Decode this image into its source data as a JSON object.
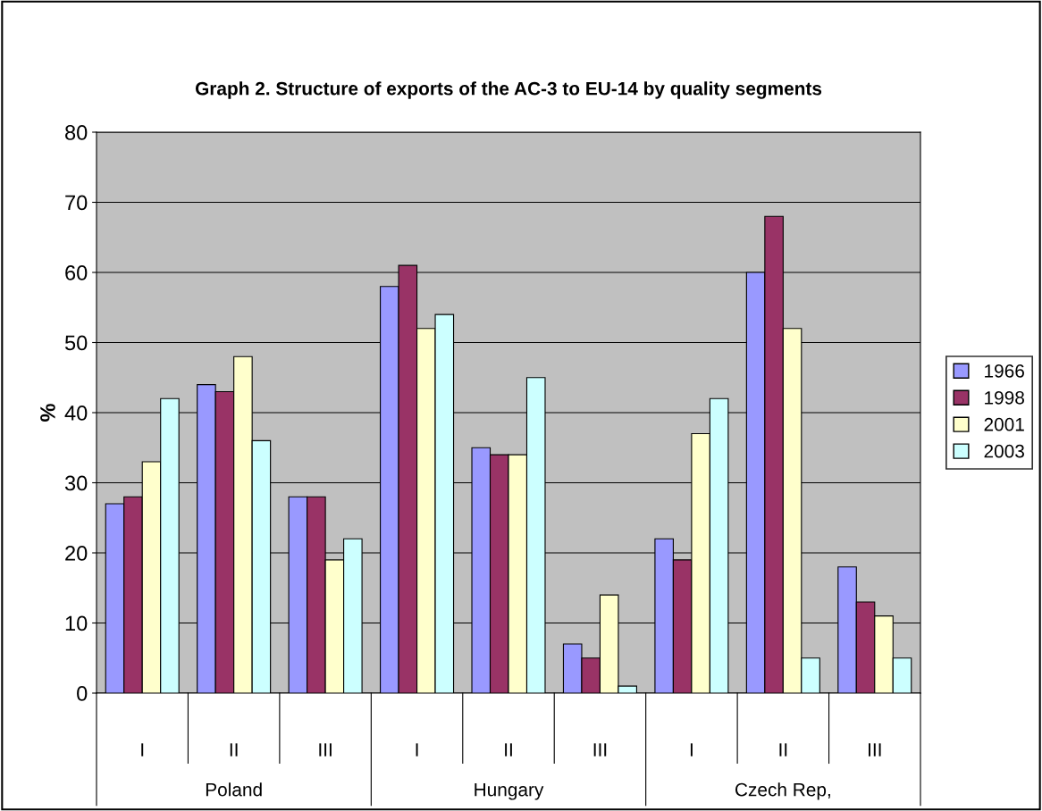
{
  "chart_data": {
    "type": "bar",
    "title": "Graph 2. Structure of exports of the AC-3 to EU-14 by quality segments",
    "ylabel": "%",
    "categories": [
      "I",
      "II",
      "III",
      "I",
      "II",
      "III",
      "I",
      "II",
      "III"
    ],
    "annotations": [
      "Poland",
      "Hungary",
      "Czech Rep,"
    ],
    "series": [
      {
        "name": "1966",
        "color": "#9999ff",
        "values": [
          27,
          44,
          28,
          58,
          35,
          7,
          22,
          60,
          18
        ]
      },
      {
        "name": "1998",
        "color": "#993366",
        "values": [
          28,
          43,
          28,
          61,
          34,
          5,
          19,
          68,
          13
        ]
      },
      {
        "name": "2001",
        "color": "#ffffcc",
        "values": [
          33,
          48,
          19,
          52,
          34,
          14,
          37,
          52,
          11
        ]
      },
      {
        "name": "2003",
        "color": "#ccffff",
        "values": [
          42,
          36,
          22,
          54,
          45,
          1,
          42,
          5,
          5
        ]
      }
    ],
    "ylim": [
      0,
      80
    ],
    "yticks": [
      0,
      10,
      20,
      30,
      40,
      50,
      60,
      70,
      80
    ],
    "grid": "y",
    "legend": "right"
  }
}
